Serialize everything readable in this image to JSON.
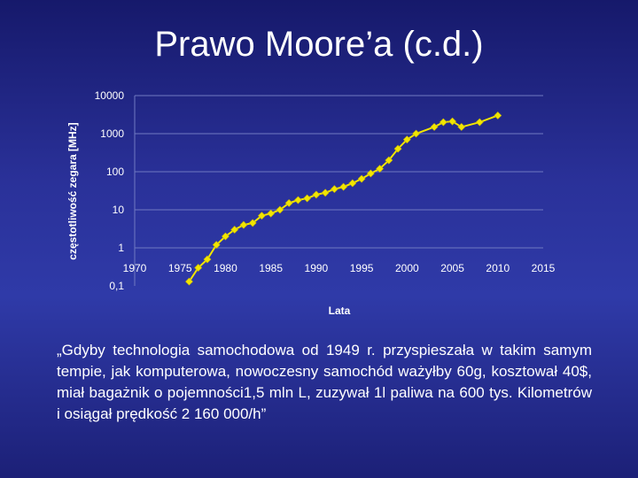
{
  "slide": {
    "title": "Prawo Moore’a (c.d.)",
    "quote": "„Gdyby technologia samochodowa od 1949 r. przyspieszała w takim samym tempie, jak komputerowa, nowoczesny samochód ważyłby 60g, kosztował 40$, miał bagażnik o pojemności1,5 mln L, zuzywał 1l paliwa na 600 tys. Kilometrów i osiągał prędkość 2 160 000/h”"
  },
  "colors": {
    "background": "#2a3199",
    "text": "#ffffff",
    "grid": "#7079c2",
    "series": "#f2e600"
  },
  "chart_data": {
    "type": "line",
    "title": "",
    "xlabel": "Lata",
    "ylabel": "częstotliwość zegara [MHz]",
    "y_scale": "log",
    "xlim": [
      1970,
      2015
    ],
    "ylim": [
      0.1,
      10000
    ],
    "x_ticks": [
      1970,
      1975,
      1980,
      1985,
      1990,
      1995,
      2000,
      2005,
      2010,
      2015
    ],
    "x_tick_labels": [
      "1970",
      "1975",
      "1980",
      "1985",
      "1990",
      "1995",
      "2000",
      "2005",
      "2010",
      "2015"
    ],
    "y_ticks": [
      0.1,
      1,
      10,
      100,
      1000,
      10000
    ],
    "y_tick_labels": [
      "0,1",
      "1",
      "10",
      "100",
      "1000",
      "10000"
    ],
    "grid": true,
    "legend": "none",
    "marker": "diamond",
    "series": [
      {
        "x": [
          1976,
          1977,
          1978,
          1979,
          1980,
          1981,
          1982,
          1983,
          1984,
          1985,
          1986,
          1987,
          1988,
          1989,
          1990,
          1991,
          1992,
          1993,
          1994,
          1995,
          1996,
          1997,
          1998,
          1999,
          2000,
          2001,
          2003,
          2004,
          2005,
          2006,
          2008,
          2010
        ],
        "y": [
          0.13,
          0.3,
          0.5,
          1.2,
          2,
          3,
          4,
          4.5,
          7,
          8,
          10,
          15,
          18,
          20,
          25,
          28,
          35,
          40,
          50,
          65,
          90,
          120,
          200,
          400,
          700,
          1000,
          1500,
          2000,
          2100,
          1500,
          2000,
          3000
        ]
      }
    ]
  }
}
